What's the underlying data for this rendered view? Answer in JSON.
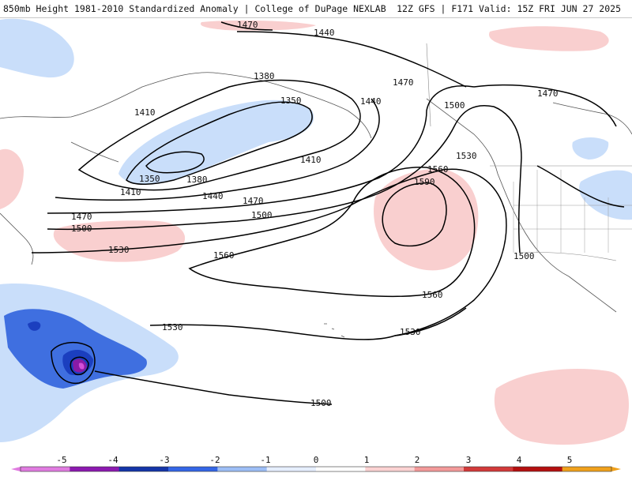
{
  "header": {
    "title": "850mb Height 1981-2010 Standardized Anomaly | College of DuPage NEXLAB",
    "run_info": "12Z GFS | F171 Valid: 15Z FRI JUN 27 2025"
  },
  "map": {
    "contour_labels": [
      "1470",
      "1440",
      "1380",
      "1350",
      "1410",
      "1470",
      "1500",
      "1440",
      "1470",
      "1410",
      "1350",
      "1380",
      "1410",
      "1440",
      "1470",
      "1500",
      "1530",
      "1560",
      "1590",
      "1470",
      "1500",
      "1530",
      "1560",
      "1560",
      "1500",
      "1530",
      "1530",
      "1500"
    ],
    "anomaly_colors": {
      "light_blue": "#c9defa",
      "mid_blue": "#3f6fe0",
      "deep_blue": "#1b3fbf",
      "purple": "#8a1aa6",
      "magenta": "#d34fd8",
      "light_pink": "#f9cfcf",
      "pink": "#f4a9a9"
    }
  },
  "colorbar": {
    "ticks": [
      "-5",
      "-4",
      "-3",
      "-2",
      "-1",
      "0",
      "1",
      "2",
      "3",
      "4",
      "5"
    ],
    "colors": [
      "#e07be0",
      "#8c19b0",
      "#1435a8",
      "#3466e6",
      "#9dbef6",
      "#e6efff",
      "#ffffff",
      "#fbd2d2",
      "#f39a9a",
      "#d23a3a",
      "#b40f0f",
      "#f0a11c"
    ]
  }
}
